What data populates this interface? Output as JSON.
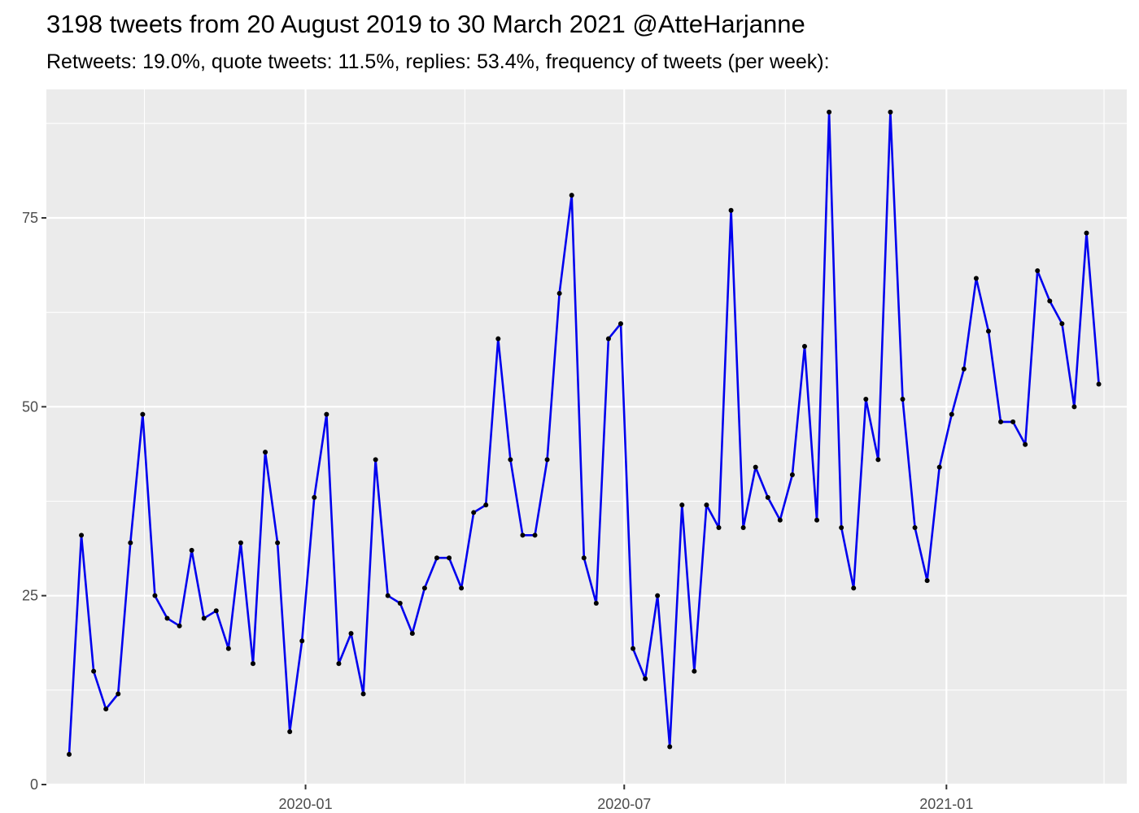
{
  "title": "3198 tweets from 20 August 2019 to 30 March 2021 @AtteHarjanne",
  "subtitle": "Retweets: 19.0%, quote tweets: 11.5%, replies: 53.4%, frequency of tweets (per week):",
  "colors": {
    "line": "#0000ee",
    "point": "#000000",
    "panel": "#ebebeb",
    "grid": "#ffffff"
  },
  "chart_data": {
    "type": "line",
    "title": "3198 tweets from 20 August 2019 to 30 March 2021 @AtteHarjanne",
    "subtitle": "Retweets: 19.0%, quote tweets: 11.5%, replies: 53.4%, frequency of tweets (per week):",
    "xlabel": "",
    "ylabel": "",
    "x_ticks": [
      "2020-01",
      "2020-07",
      "2021-01"
    ],
    "y_ticks": [
      0,
      25,
      50,
      75
    ],
    "xlim": [
      "2019-08-06",
      "2021-04-14"
    ],
    "ylim": [
      0,
      92
    ],
    "grid": true,
    "legend": "none",
    "series": [
      {
        "x": [
          "2019-08-19",
          "2019-08-26",
          "2019-09-02",
          "2019-09-09",
          "2019-09-16",
          "2019-09-23",
          "2019-09-30",
          "2019-10-07",
          "2019-10-14",
          "2019-10-21",
          "2019-10-28",
          "2019-11-04",
          "2019-11-11",
          "2019-11-18",
          "2019-11-25",
          "2019-12-02",
          "2019-12-09",
          "2019-12-16",
          "2019-12-23",
          "2019-12-30",
          "2020-01-06",
          "2020-01-13",
          "2020-01-20",
          "2020-01-27",
          "2020-02-03",
          "2020-02-10",
          "2020-02-17",
          "2020-02-24",
          "2020-03-02",
          "2020-03-09",
          "2020-03-16",
          "2020-03-23",
          "2020-03-30",
          "2020-04-06",
          "2020-04-13",
          "2020-04-20",
          "2020-04-27",
          "2020-05-04",
          "2020-05-11",
          "2020-05-18",
          "2020-05-25",
          "2020-06-01",
          "2020-06-08",
          "2020-06-15",
          "2020-06-22",
          "2020-06-29",
          "2020-07-06",
          "2020-07-13",
          "2020-07-20",
          "2020-07-27",
          "2020-08-03",
          "2020-08-10",
          "2020-08-17",
          "2020-08-24",
          "2020-08-31",
          "2020-09-07",
          "2020-09-14",
          "2020-09-21",
          "2020-09-28",
          "2020-10-05",
          "2020-10-12",
          "2020-10-19",
          "2020-10-26",
          "2020-11-02",
          "2020-11-09",
          "2020-11-16",
          "2020-11-23",
          "2020-11-30",
          "2020-12-07",
          "2020-12-14",
          "2020-12-21",
          "2020-12-28",
          "2021-01-04",
          "2021-01-11",
          "2021-01-18",
          "2021-01-25",
          "2021-02-01",
          "2021-02-08",
          "2021-02-15",
          "2021-02-22",
          "2021-03-01",
          "2021-03-08",
          "2021-03-15",
          "2021-03-22",
          "2021-03-29"
        ],
        "values": [
          4,
          33,
          15,
          10,
          12,
          32,
          49,
          25,
          22,
          21,
          31,
          22,
          23,
          18,
          32,
          16,
          44,
          32,
          7,
          19,
          38,
          49,
          16,
          20,
          12,
          43,
          25,
          24,
          20,
          26,
          30,
          30,
          26,
          36,
          37,
          59,
          43,
          33,
          33,
          43,
          65,
          78,
          30,
          24,
          59,
          61,
          18,
          14,
          25,
          5,
          37,
          15,
          37,
          34,
          76,
          34,
          42,
          38,
          35,
          41,
          58,
          35,
          89,
          34,
          26,
          51,
          43,
          89,
          51,
          34,
          27,
          42,
          49,
          55,
          67,
          60,
          48,
          48,
          45,
          68,
          64,
          61,
          50,
          73,
          53
        ]
      }
    ]
  }
}
